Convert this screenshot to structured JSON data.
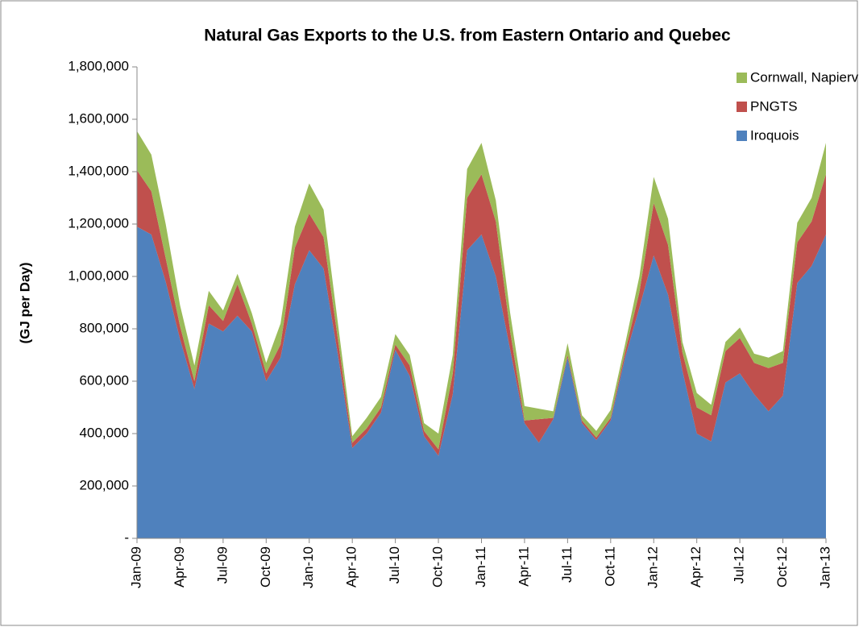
{
  "chart_data": {
    "type": "stacked_area",
    "title": "Natural Gas Exports to the U.S. from Eastern Ontario and Quebec",
    "y_label": "(GJ per Day)",
    "categories": [
      "Jan-09",
      null,
      null,
      "Apr-09",
      null,
      null,
      "Jul-09",
      null,
      null,
      "Oct-09",
      null,
      null,
      "Jan-10",
      null,
      null,
      "Apr-10",
      null,
      null,
      "Jul-10",
      null,
      null,
      "Oct-10",
      null,
      null,
      "Jan-11",
      null,
      null,
      "Apr-11",
      null,
      null,
      "Jul-11",
      null,
      null,
      "Oct-11",
      null,
      null,
      "Jan-12",
      null,
      null,
      "Apr-12",
      null,
      null,
      "Jul-12",
      null,
      null,
      "Oct-12",
      null,
      null,
      "Jan-13"
    ],
    "series": [
      {
        "name": "Iroquois",
        "color": "#4f81bd",
        "values": [
          1190000,
          1160000,
          980000,
          760000,
          570000,
          820000,
          790000,
          850000,
          790000,
          600000,
          690000,
          970000,
          1100000,
          1030000,
          700000,
          345000,
          400000,
          480000,
          720000,
          620000,
          390000,
          315000,
          550000,
          1100000,
          1160000,
          1000000,
          720000,
          440000,
          365000,
          455000,
          690000,
          440000,
          375000,
          450000,
          690000,
          880000,
          1080000,
          930000,
          640000,
          400000,
          370000,
          595000,
          630000,
          550000,
          485000,
          545000,
          975000,
          1040000,
          1160000
        ]
      },
      {
        "name": "PNGTS",
        "color": "#c0504d",
        "values": [
          215000,
          165000,
          90000,
          50000,
          30000,
          70000,
          40000,
          120000,
          30000,
          30000,
          50000,
          140000,
          140000,
          120000,
          60000,
          20000,
          20000,
          20000,
          20000,
          40000,
          20000,
          25000,
          80000,
          200000,
          230000,
          210000,
          70000,
          10000,
          90000,
          5000,
          10000,
          10000,
          10000,
          10000,
          20000,
          60000,
          200000,
          190000,
          70000,
          100000,
          100000,
          120000,
          135000,
          120000,
          165000,
          125000,
          155000,
          170000,
          230000
        ]
      },
      {
        "name": "Cornwall, Napierville, and Philipsburg",
        "color": "#9bbb59",
        "values": [
          150000,
          140000,
          130000,
          80000,
          60000,
          55000,
          40000,
          40000,
          40000,
          40000,
          80000,
          80000,
          115000,
          105000,
          60000,
          25000,
          40000,
          40000,
          40000,
          40000,
          30000,
          60000,
          70000,
          110000,
          120000,
          80000,
          70000,
          55000,
          40000,
          25000,
          45000,
          20000,
          25000,
          30000,
          30000,
          60000,
          100000,
          100000,
          40000,
          55000,
          40000,
          35000,
          40000,
          35000,
          40000,
          45000,
          75000,
          90000,
          120000
        ]
      }
    ],
    "ylim": [
      0,
      1800000
    ],
    "yticks": [
      {
        "value": 0,
        "label": "-"
      },
      {
        "value": 200000,
        "label": "200,000"
      },
      {
        "value": 400000,
        "label": "400,000"
      },
      {
        "value": 600000,
        "label": "600,000"
      },
      {
        "value": 800000,
        "label": "800,000"
      },
      {
        "value": 1000000,
        "label": "1,000,000"
      },
      {
        "value": 1200000,
        "label": "1,200,000"
      },
      {
        "value": 1400000,
        "label": "1,400,000"
      },
      {
        "value": 1600000,
        "label": "1,600,000"
      },
      {
        "value": 1800000,
        "label": "1,800,000"
      }
    ],
    "legend": "top-right"
  }
}
